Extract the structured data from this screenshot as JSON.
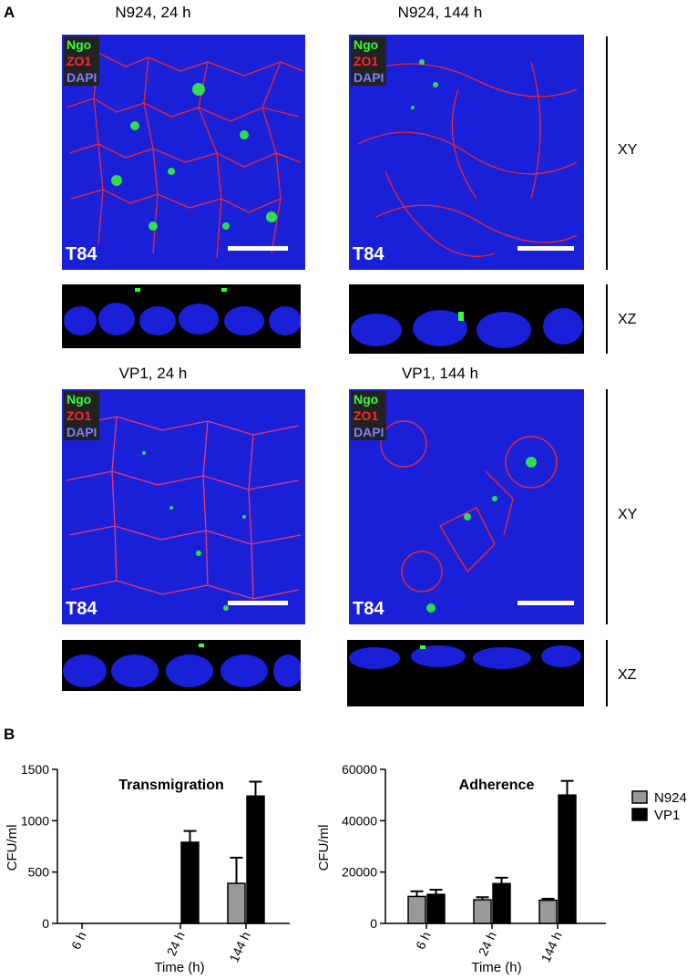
{
  "panel_a": {
    "letter": "A",
    "images": [
      {
        "title": "N924, 24 h",
        "stains": [
          "Ngo",
          "ZO1",
          "DAPI"
        ],
        "cell_line": "T84"
      },
      {
        "title": "N924, 144 h",
        "stains": [
          "Ngo",
          "ZO1",
          "DAPI"
        ],
        "cell_line": "T84"
      },
      {
        "title": "VP1, 24 h",
        "stains": [
          "Ngo",
          "ZO1",
          "DAPI"
        ],
        "cell_line": "T84"
      },
      {
        "title": "VP1, 144 h",
        "stains": [
          "Ngo",
          "ZO1",
          "DAPI"
        ],
        "cell_line": "T84"
      }
    ],
    "view_labels": {
      "xy": "XY",
      "xz": "XZ"
    },
    "colors": {
      "ngo": "#35ff35",
      "zo1": "#ff2a2a",
      "dapi": "#8080ff",
      "nuclei": "#1a1fd8"
    }
  },
  "panel_b": {
    "letter": "B",
    "legend": [
      {
        "label": "N924",
        "color": "#999999"
      },
      {
        "label": "VP1",
        "color": "#000000"
      }
    ]
  },
  "chart_data": [
    {
      "type": "bar",
      "title": "Transmigration",
      "xlabel": "Time (h)",
      "ylabel": "CFU/ml",
      "categories": [
        "6 h",
        "24 h",
        "144 h"
      ],
      "ylim": [
        0,
        1500
      ],
      "yticks": [
        0,
        500,
        1000,
        1500
      ],
      "series": [
        {
          "name": "N924",
          "values": [
            0,
            0,
            390
          ],
          "errors": [
            0,
            0,
            250
          ]
        },
        {
          "name": "VP1",
          "values": [
            0,
            790,
            1240
          ],
          "errors": [
            0,
            110,
            140
          ]
        }
      ]
    },
    {
      "type": "bar",
      "title": "Adherence",
      "xlabel": "Time (h)",
      "ylabel": "CFU/ml",
      "categories": [
        "6 h",
        "24 h",
        "144 h"
      ],
      "ylim": [
        0,
        60000
      ],
      "yticks": [
        0,
        20000,
        40000,
        60000
      ],
      "series": [
        {
          "name": "N924",
          "values": [
            10500,
            9200,
            9000
          ],
          "errors": [
            2000,
            1000,
            600
          ]
        },
        {
          "name": "VP1",
          "values": [
            11300,
            15500,
            50000
          ],
          "errors": [
            1800,
            2300,
            5500
          ]
        }
      ]
    }
  ]
}
